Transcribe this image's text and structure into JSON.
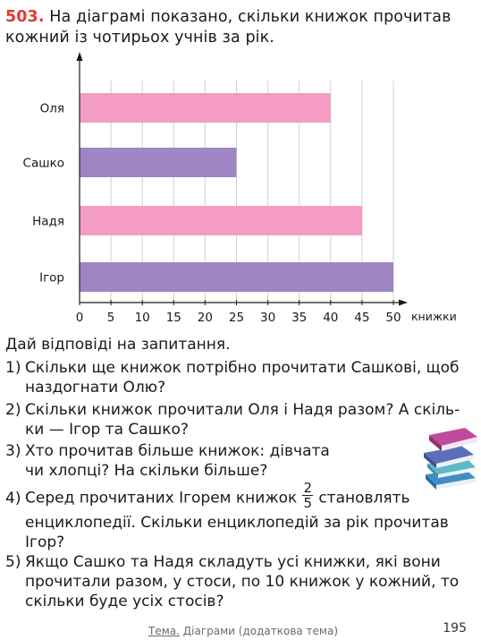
{
  "task": {
    "number": "503.",
    "intro": "На діаграмі показано, скільки книжок прочитав кожний із чотирьох учнів за рік.",
    "subheading": "Дай відповіді на запитання."
  },
  "questions": [
    {
      "num": "1)",
      "line1": "Скільки ще книжок потрібно прочитати Сашкові, щоб",
      "line2": "наздогнати Олю?"
    },
    {
      "num": "2)",
      "line1": "Скільки книжок прочитали Оля і Надя разом? А скіль-",
      "line2": "ки — Ігор та Сашко?"
    },
    {
      "num": "3)",
      "line1": "Хто прочитав більше книжок: дівчата",
      "line2": "чи хлопці? На скільки більше?"
    },
    {
      "num": "4)",
      "pre": "Серед прочитаних Ігорем книжок",
      "frac_num": "2",
      "frac_den": "5",
      "post": "становлять",
      "line2": "енциклопедії. Скільки енциклопедій за рік прочитав",
      "line3": "Ігор?"
    },
    {
      "num": "5)",
      "line1": "Якщо Сашко та Надя складуть усі книжки, які вони",
      "line2": "прочитали разом, у стоси, по 10 книжок у кожний, то",
      "line3": "скільки буде усіх стосів?"
    }
  ],
  "footer": {
    "topic_label": "Тема.",
    "topic": "Діаграми (додаткова тема)",
    "page": "195"
  },
  "chart_data": {
    "type": "bar",
    "orientation": "horizontal",
    "categories": [
      "Оля",
      "Сашко",
      "Надя",
      "Ігор"
    ],
    "values": [
      40,
      25,
      45,
      50
    ],
    "colors": [
      "#f49cc4",
      "#9f86c2",
      "#f49cc4",
      "#9f86c2"
    ],
    "xlabel": "книжки",
    "xticks": [
      0,
      5,
      10,
      15,
      20,
      25,
      30,
      35,
      40,
      45,
      50
    ],
    "xlim": [
      0,
      50
    ],
    "grid": true
  }
}
